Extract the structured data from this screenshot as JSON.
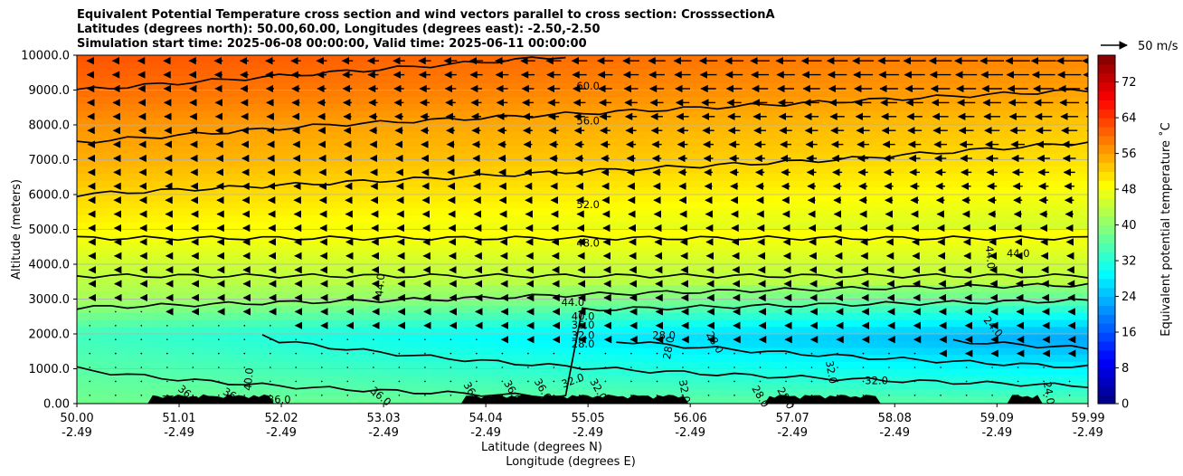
{
  "chart_data": {
    "type": "heatmap",
    "title_lines": [
      "Equivalent Potential Temperature cross section and wind vectors parallel to cross section: CrosssectionA",
      "Latitudes (degrees north): 50.00,60.00, Longitudes (degrees east): -2.50,-2.50",
      "Simulation start time: 2025-06-08 00:00:00, Valid time: 2025-06-11 00:00:00"
    ],
    "ylabel": "Altitude (meters)",
    "xlabel": "Latitude (degrees N)",
    "xlabel2": "Longitude (degrees E)",
    "colorbar_label": "Equivalent potential temperature ˚C",
    "ylim": [
      0,
      10000
    ],
    "y_ticks": [
      "0.00",
      "1000.0",
      "2000.0",
      "3000.0",
      "4000.0",
      "5000.0",
      "6000.0",
      "7000.0",
      "8000.0",
      "9000.0",
      "10000.0"
    ],
    "x_ticks": [
      {
        "lat": "50.00",
        "lon": "-2.49"
      },
      {
        "lat": "51.01",
        "lon": "-2.49"
      },
      {
        "lat": "52.02",
        "lon": "-2.49"
      },
      {
        "lat": "53.03",
        "lon": "-2.49"
      },
      {
        "lat": "54.04",
        "lon": "-2.49"
      },
      {
        "lat": "55.05",
        "lon": "-2.49"
      },
      {
        "lat": "56.06",
        "lon": "-2.49"
      },
      {
        "lat": "57.07",
        "lon": "-2.49"
      },
      {
        "lat": "58.08",
        "lon": "-2.49"
      },
      {
        "lat": "59.09",
        "lon": "-2.49"
      },
      {
        "lat": "59.99",
        "lon": "-2.49"
      }
    ],
    "colorbar_ticks": [
      "0",
      "8",
      "16",
      "24",
      "32",
      "40",
      "48",
      "56",
      "64",
      "72"
    ],
    "colorbar_range": [
      0,
      78
    ],
    "quiver_key": "50 m/s",
    "grid": "horizontal",
    "colormap": "jet",
    "contour_levels_labeled": [
      "60.0",
      "56.0",
      "52.0",
      "48.0",
      "44.0",
      "40.0",
      "36.0",
      "32.0",
      "28.0",
      "24.0"
    ],
    "contour_labels": [
      {
        "text": "60.0",
        "lat": 55.05,
        "alt": 9100,
        "rot": 0
      },
      {
        "text": "56.0",
        "lat": 55.05,
        "alt": 8100,
        "rot": 0
      },
      {
        "text": "52.0",
        "lat": 55.05,
        "alt": 5700,
        "rot": 0
      },
      {
        "text": "48.0",
        "lat": 55.05,
        "alt": 4600,
        "rot": 0
      },
      {
        "text": "44.0",
        "lat": 54.9,
        "alt": 2900,
        "rot": 0
      },
      {
        "text": "40.0",
        "lat": 55.0,
        "alt": 2500,
        "rot": 0
      },
      {
        "text": "36.0",
        "lat": 55.0,
        "alt": 2250,
        "rot": 0
      },
      {
        "text": "32.0",
        "lat": 55.0,
        "alt": 1950,
        "rot": 0
      },
      {
        "text": "28.0",
        "lat": 55.0,
        "alt": 1700,
        "rot": 0
      },
      {
        "text": "28.0",
        "lat": 55.8,
        "alt": 1950,
        "rot": 0
      },
      {
        "text": "28.0",
        "lat": 55.85,
        "alt": 1600,
        "rot": -80
      },
      {
        "text": "28.0",
        "lat": 56.3,
        "alt": 1750,
        "rot": 60
      },
      {
        "text": "44.0",
        "lat": 53.0,
        "alt": 3400,
        "rot": -85
      },
      {
        "text": "40.0",
        "lat": 51.7,
        "alt": 700,
        "rot": -85
      },
      {
        "text": "44.0",
        "lat": 59.3,
        "alt": 4300,
        "rot": 0
      },
      {
        "text": "44.0",
        "lat": 59.02,
        "alt": 4200,
        "rot": 85
      },
      {
        "text": "24.0",
        "lat": 59.05,
        "alt": 2200,
        "rot": 50
      },
      {
        "text": "24.0",
        "lat": 59.6,
        "alt": 300,
        "rot": 80
      },
      {
        "text": "32.0",
        "lat": 57.45,
        "alt": 900,
        "rot": 80
      },
      {
        "text": "32.0",
        "lat": 57.9,
        "alt": 650,
        "rot": 0
      },
      {
        "text": "32.0",
        "lat": 54.9,
        "alt": 650,
        "rot": -20
      },
      {
        "text": "32.0",
        "lat": 56.0,
        "alt": 350,
        "rot": 80
      },
      {
        "text": "36.0",
        "lat": 51.1,
        "alt": 250,
        "rot": 40
      },
      {
        "text": "36.0",
        "lat": 50.95,
        "alt": 100,
        "rot": 0
      },
      {
        "text": "36.0",
        "lat": 51.55,
        "alt": 200,
        "rot": 30
      },
      {
        "text": "36.0",
        "lat": 52.0,
        "alt": 100,
        "rot": 0
      },
      {
        "text": "36.0",
        "lat": 53.0,
        "alt": 200,
        "rot": 40
      },
      {
        "text": "36.0",
        "lat": 53.9,
        "alt": 300,
        "rot": 60
      },
      {
        "text": "36.0",
        "lat": 54.3,
        "alt": 350,
        "rot": 60
      },
      {
        "text": "36.0",
        "lat": 54.6,
        "alt": 400,
        "rot": 60
      },
      {
        "text": "32.0",
        "lat": 55.15,
        "alt": 400,
        "rot": 60
      },
      {
        "text": "28.0",
        "lat": 56.75,
        "alt": 200,
        "rot": 60
      },
      {
        "text": "28.0",
        "lat": 57.0,
        "alt": 150,
        "rot": 60
      }
    ],
    "theta_e_profile": [
      {
        "alt": 0,
        "value": 38
      },
      {
        "alt": 1000,
        "value": 36
      },
      {
        "alt": 2000,
        "value": 34
      },
      {
        "alt": 3000,
        "value": 42
      },
      {
        "alt": 4000,
        "value": 45
      },
      {
        "alt": 5000,
        "value": 49
      },
      {
        "alt": 6000,
        "value": 52
      },
      {
        "alt": 7000,
        "value": 55
      },
      {
        "alt": 8000,
        "value": 57
      },
      {
        "alt": 9000,
        "value": 60
      },
      {
        "alt": 10000,
        "value": 62
      }
    ],
    "wind_speed_parallel_ms": {
      "upper_north": -50,
      "upper_south": -10,
      "lower": -2
    }
  }
}
